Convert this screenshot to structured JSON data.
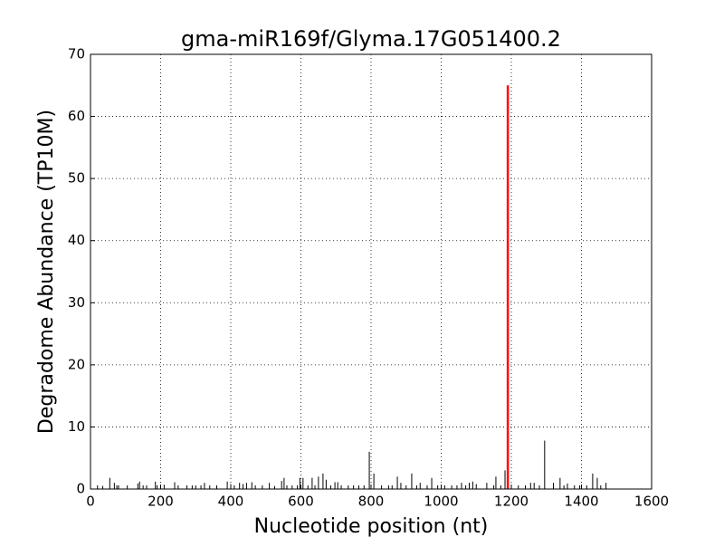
{
  "chart_data": {
    "type": "stem",
    "title": "gma-miR169f/Glyma.17G051400.2",
    "xlabel": "Nucleotide position (nt)",
    "ylabel": "Degradome Abundance (TP10M)",
    "xlim": [
      0,
      1600
    ],
    "xticks": [
      0,
      200,
      400,
      600,
      800,
      1000,
      1200,
      1400,
      1600
    ],
    "ylim": [
      0,
      70
    ],
    "yticks": [
      0,
      10,
      20,
      30,
      40,
      50,
      60,
      70
    ],
    "grid": true,
    "series": [
      {
        "color": "#000000",
        "x": [
          20,
          35,
          55,
          68,
          75,
          80,
          105,
          135,
          140,
          150,
          160,
          185,
          190,
          210,
          240,
          250,
          275,
          290,
          300,
          315,
          325,
          340,
          360,
          390,
          400,
          410,
          425,
          435,
          445,
          460,
          470,
          490,
          510,
          525,
          545,
          552,
          560,
          575,
          590,
          597,
          606,
          620,
          632,
          640,
          650,
          663,
          672,
          685,
          697,
          705,
          715,
          735,
          750,
          765,
          780,
          795,
          808,
          830,
          850,
          860,
          875,
          885,
          900,
          916,
          930,
          940,
          960,
          973,
          990,
          1010,
          1030,
          1045,
          1058,
          1070,
          1080,
          1090,
          1100,
          1130,
          1150,
          1156,
          1170,
          1182,
          1200,
          1220,
          1240,
          1255,
          1265,
          1280,
          1295,
          1320,
          1339,
          1350,
          1360,
          1380,
          1395,
          1415,
          1432,
          1445,
          1455,
          1470
        ],
        "values": [
          0.6,
          0.5,
          1.8,
          1,
          0.6,
          0.6,
          0.6,
          0.9,
          1.2,
          0.6,
          0.6,
          1.2,
          0.6,
          0.7,
          1.1,
          0.6,
          0.6,
          0.6,
          0.6,
          0.6,
          1,
          0.6,
          0.6,
          1.2,
          0.8,
          0.6,
          1,
          0.8,
          1,
          1.1,
          0.6,
          0.6,
          1,
          0.5,
          1.3,
          1.8,
          0.6,
          0.6,
          0.6,
          1.8,
          1.8,
          0.6,
          1.8,
          0.6,
          2,
          2.5,
          1.5,
          0.6,
          1.1,
          1.1,
          0.6,
          0.6,
          0.6,
          0.6,
          0.6,
          6,
          2.5,
          0.6,
          0.6,
          0.6,
          2,
          1,
          0.6,
          2.5,
          0.6,
          1,
          0.6,
          1.8,
          0.6,
          0.6,
          0.6,
          0.6,
          1,
          0.6,
          1,
          1.2,
          0.8,
          1,
          0.6,
          2,
          0.6,
          3,
          0.6,
          0.6,
          0.6,
          1,
          1,
          0.6,
          7.8,
          1,
          1.8,
          0.6,
          0.9,
          0.6,
          0.6,
          0.6,
          2.5,
          1.8,
          0.6,
          1
        ]
      },
      {
        "color": "#ff0000",
        "width": 2.5,
        "x": [
          1190
        ],
        "values": [
          65
        ]
      }
    ]
  }
}
